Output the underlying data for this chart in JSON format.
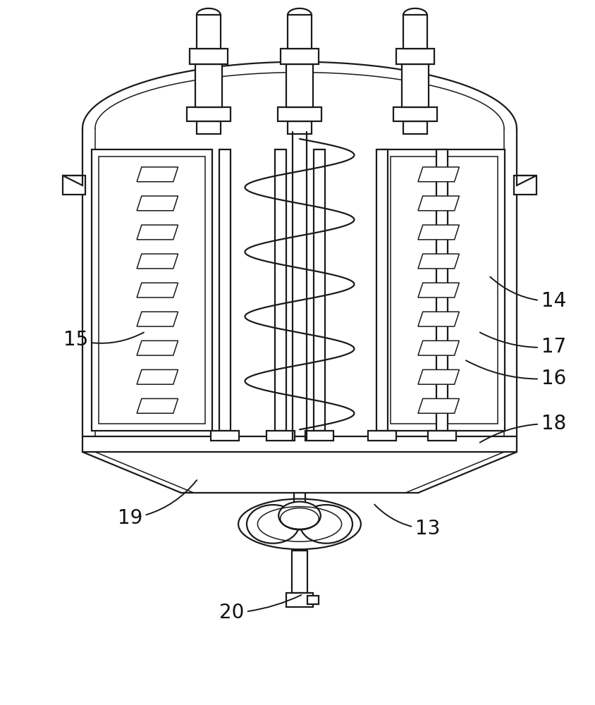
{
  "bg_color": "#ffffff",
  "line_color": "#1a1a1a",
  "lw": 1.6,
  "lw_thin": 1.1,
  "fig_width": 8.44,
  "fig_height": 10.0
}
